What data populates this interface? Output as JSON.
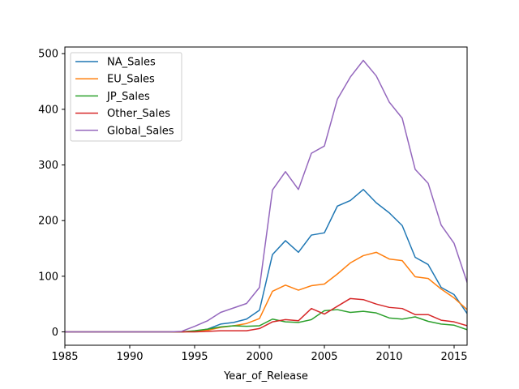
{
  "chart_data": {
    "type": "line",
    "xlabel": "Year_of_Release",
    "ylabel": "",
    "xlim": [
      1985,
      2016
    ],
    "ylim": [
      -24,
      512
    ],
    "x_ticks": [
      1985,
      1990,
      1995,
      2000,
      2005,
      2010,
      2015
    ],
    "y_ticks": [
      0,
      100,
      200,
      300,
      400,
      500
    ],
    "grid": false,
    "legend_position": "top-left",
    "x": [
      1985,
      1986,
      1987,
      1988,
      1989,
      1990,
      1991,
      1992,
      1993,
      1994,
      1995,
      1996,
      1997,
      1998,
      1999,
      2000,
      2001,
      2002,
      2003,
      2004,
      2005,
      2006,
      2007,
      2008,
      2009,
      2010,
      2011,
      2012,
      2013,
      2014,
      2015,
      2016
    ],
    "series": [
      {
        "name": "NA_Sales",
        "color": "#1f77b4",
        "values": [
          0,
          0,
          0,
          0,
          0,
          0,
          0,
          0,
          0,
          0,
          1,
          5,
          14,
          17,
          23,
          39,
          139,
          164,
          143,
          174,
          178,
          226,
          236,
          256,
          232,
          214,
          191,
          134,
          121,
          80,
          67,
          33
        ]
      },
      {
        "name": "EU_Sales",
        "color": "#ff7f0e",
        "values": [
          0,
          0,
          0,
          0,
          0,
          0,
          0,
          0,
          0,
          0,
          1,
          3,
          8,
          11,
          15,
          24,
          73,
          84,
          75,
          83,
          86,
          104,
          124,
          137,
          143,
          131,
          128,
          99,
          96,
          77,
          61,
          40
        ]
      },
      {
        "name": "JP_Sales",
        "color": "#2ca02c",
        "values": [
          0,
          0,
          0,
          0,
          0,
          0,
          0,
          0,
          0,
          0,
          2,
          5,
          9,
          11,
          10,
          11,
          23,
          18,
          17,
          22,
          38,
          40,
          35,
          37,
          34,
          25,
          23,
          27,
          19,
          14,
          12,
          4
        ]
      },
      {
        "name": "Other_Sales",
        "color": "#d62728",
        "values": [
          0,
          0,
          0,
          0,
          0,
          0,
          0,
          0,
          0,
          0,
          0,
          1,
          2,
          2,
          2,
          6,
          18,
          22,
          20,
          42,
          32,
          46,
          60,
          58,
          50,
          44,
          42,
          31,
          31,
          21,
          18,
          11
        ]
      },
      {
        "name": "Global_Sales",
        "color": "#9467bd",
        "values": [
          0,
          0,
          0,
          0,
          0,
          0,
          0,
          0,
          0,
          1,
          10,
          20,
          35,
          43,
          51,
          80,
          255,
          288,
          256,
          321,
          334,
          418,
          458,
          488,
          460,
          413,
          384,
          292,
          267,
          192,
          159,
          89
        ]
      }
    ]
  }
}
